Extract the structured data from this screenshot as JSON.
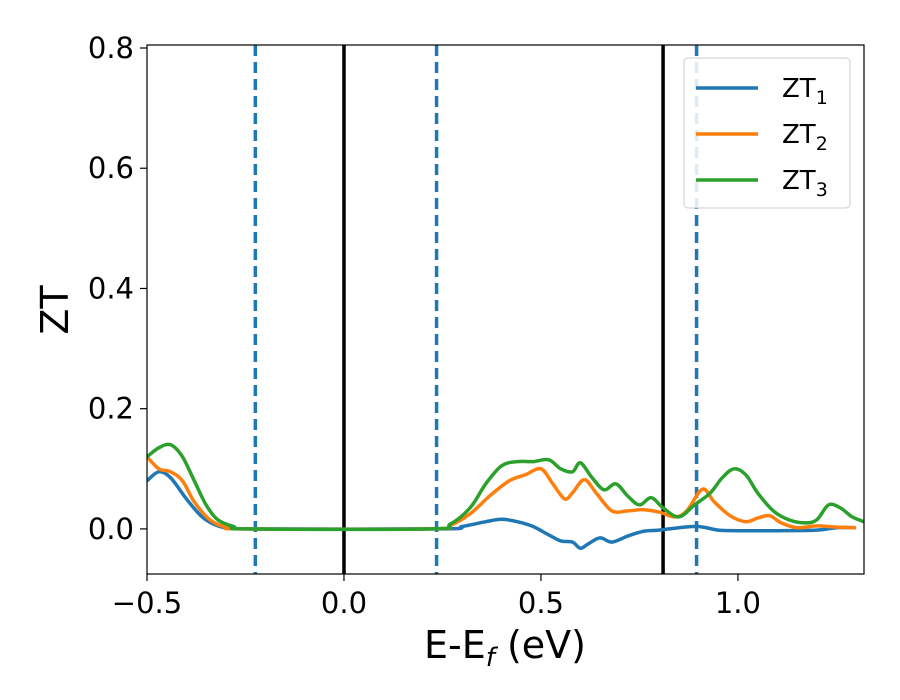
{
  "chart_data": {
    "type": "line",
    "xlabel": "E-E",
    "xlabel_sub": "f",
    "xlabel_unit": " (eV)",
    "ylabel": "ZT",
    "xlim": [
      -0.5,
      1.32
    ],
    "ylim": [
      -0.075,
      0.805
    ],
    "grid": false,
    "legend_position": "top-right",
    "x_ticks": [
      -0.5,
      0.0,
      0.5,
      1.0
    ],
    "x_tick_labels": [
      "−0.5",
      "0.0",
      "0.5",
      "1.0"
    ],
    "y_ticks": [
      0.0,
      0.2,
      0.4,
      0.6,
      0.8
    ],
    "y_tick_labels": [
      "0.0",
      "0.2",
      "0.4",
      "0.6",
      "0.8"
    ],
    "vertical_lines": [
      {
        "x": -0.225,
        "style": "dashed",
        "color": "#1f77b4"
      },
      {
        "x": 0.0,
        "style": "solid",
        "color": "#000000"
      },
      {
        "x": 0.235,
        "style": "dashed",
        "color": "#1f77b4"
      },
      {
        "x": 0.81,
        "style": "solid",
        "color": "#000000"
      },
      {
        "x": 0.895,
        "style": "dashed",
        "color": "#1f77b4"
      }
    ],
    "series": [
      {
        "name": "ZT",
        "sub": "1",
        "color": "#1f77b4",
        "points": [
          [
            -0.5,
            0.08
          ],
          [
            -0.47,
            0.095
          ],
          [
            -0.44,
            0.085
          ],
          [
            -0.4,
            0.05
          ],
          [
            -0.36,
            0.02
          ],
          [
            -0.32,
            0.005
          ],
          [
            -0.28,
            0.001
          ],
          [
            -0.2,
            0.0
          ],
          [
            0.25,
            0.0
          ],
          [
            0.3,
            0.004
          ],
          [
            0.36,
            0.012
          ],
          [
            0.4,
            0.016
          ],
          [
            0.44,
            0.012
          ],
          [
            0.48,
            0.004
          ],
          [
            0.52,
            -0.01
          ],
          [
            0.55,
            -0.02
          ],
          [
            0.58,
            -0.022
          ],
          [
            0.6,
            -0.032
          ],
          [
            0.62,
            -0.025
          ],
          [
            0.65,
            -0.015
          ],
          [
            0.68,
            -0.022
          ],
          [
            0.72,
            -0.012
          ],
          [
            0.76,
            -0.004
          ],
          [
            0.8,
            -0.002
          ],
          [
            0.85,
            0.002
          ],
          [
            0.9,
            0.004
          ],
          [
            0.95,
            -0.002
          ],
          [
            1.0,
            -0.003
          ],
          [
            1.1,
            -0.003
          ],
          [
            1.2,
            -0.002
          ],
          [
            1.25,
            0.002
          ],
          [
            1.3,
            0.002
          ]
        ]
      },
      {
        "name": "ZT",
        "sub": "2",
        "color": "#ff7f0e",
        "points": [
          [
            -0.5,
            0.12
          ],
          [
            -0.47,
            0.1
          ],
          [
            -0.44,
            0.095
          ],
          [
            -0.41,
            0.08
          ],
          [
            -0.38,
            0.045
          ],
          [
            -0.34,
            0.015
          ],
          [
            -0.3,
            0.003
          ],
          [
            -0.25,
            0.0
          ],
          [
            0.22,
            0.0
          ],
          [
            0.27,
            0.006
          ],
          [
            0.32,
            0.025
          ],
          [
            0.37,
            0.055
          ],
          [
            0.42,
            0.08
          ],
          [
            0.46,
            0.09
          ],
          [
            0.5,
            0.1
          ],
          [
            0.53,
            0.075
          ],
          [
            0.56,
            0.05
          ],
          [
            0.58,
            0.06
          ],
          [
            0.61,
            0.082
          ],
          [
            0.64,
            0.06
          ],
          [
            0.68,
            0.03
          ],
          [
            0.72,
            0.03
          ],
          [
            0.76,
            0.032
          ],
          [
            0.8,
            0.028
          ],
          [
            0.84,
            0.02
          ],
          [
            0.87,
            0.03
          ],
          [
            0.91,
            0.066
          ],
          [
            0.94,
            0.045
          ],
          [
            0.98,
            0.022
          ],
          [
            1.02,
            0.012
          ],
          [
            1.05,
            0.018
          ],
          [
            1.08,
            0.022
          ],
          [
            1.11,
            0.01
          ],
          [
            1.15,
            0.002
          ],
          [
            1.2,
            0.005
          ],
          [
            1.25,
            0.003
          ],
          [
            1.3,
            0.002
          ]
        ]
      },
      {
        "name": "ZT",
        "sub": "3",
        "color": "#2ca02c",
        "points": [
          [
            -0.5,
            0.12
          ],
          [
            -0.47,
            0.135
          ],
          [
            -0.44,
            0.14
          ],
          [
            -0.41,
            0.12
          ],
          [
            -0.38,
            0.08
          ],
          [
            -0.35,
            0.04
          ],
          [
            -0.32,
            0.015
          ],
          [
            -0.28,
            0.004
          ],
          [
            -0.24,
            0.0
          ],
          [
            0.22,
            0.0
          ],
          [
            0.27,
            0.008
          ],
          [
            0.32,
            0.035
          ],
          [
            0.36,
            0.075
          ],
          [
            0.4,
            0.105
          ],
          [
            0.44,
            0.112
          ],
          [
            0.48,
            0.112
          ],
          [
            0.52,
            0.115
          ],
          [
            0.55,
            0.1
          ],
          [
            0.58,
            0.095
          ],
          [
            0.6,
            0.11
          ],
          [
            0.63,
            0.085
          ],
          [
            0.66,
            0.065
          ],
          [
            0.69,
            0.075
          ],
          [
            0.72,
            0.055
          ],
          [
            0.75,
            0.04
          ],
          [
            0.78,
            0.052
          ],
          [
            0.81,
            0.035
          ],
          [
            0.85,
            0.02
          ],
          [
            0.89,
            0.04
          ],
          [
            0.93,
            0.06
          ],
          [
            0.96,
            0.085
          ],
          [
            0.99,
            0.1
          ],
          [
            1.02,
            0.09
          ],
          [
            1.05,
            0.06
          ],
          [
            1.09,
            0.03
          ],
          [
            1.13,
            0.015
          ],
          [
            1.17,
            0.01
          ],
          [
            1.2,
            0.015
          ],
          [
            1.23,
            0.04
          ],
          [
            1.26,
            0.035
          ],
          [
            1.29,
            0.02
          ],
          [
            1.32,
            0.012
          ]
        ]
      }
    ]
  }
}
